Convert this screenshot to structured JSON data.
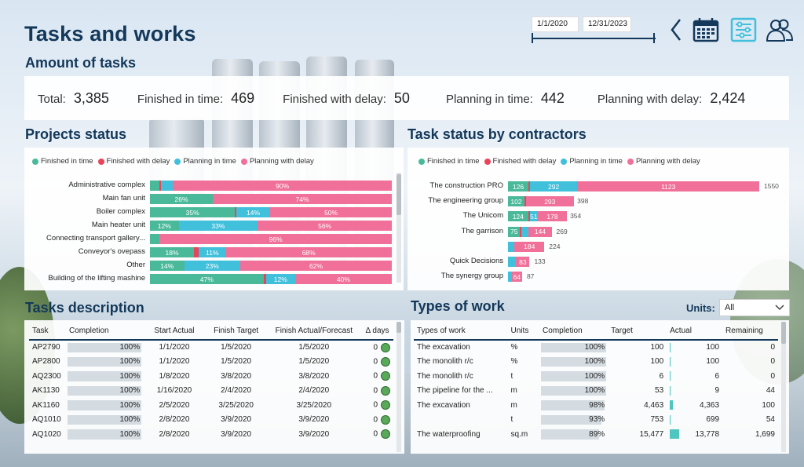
{
  "header": {
    "title": "Tasks and works",
    "date_from": "1/1/2020",
    "date_to": "12/31/2023"
  },
  "nav_icons": [
    "back-chevron-icon",
    "calendar-icon",
    "filter-sliders-icon",
    "users-icon"
  ],
  "colors": {
    "finished_in_time": "#4ab99a",
    "finished_with_delay": "#e8445a",
    "planning_in_time": "#41c0dc",
    "planning_with_delay": "#f07099",
    "title": "#13385a"
  },
  "kpis": {
    "heading": "Amount of tasks",
    "items": [
      {
        "label": "Total:",
        "value": "3,385"
      },
      {
        "label": "Finished in time:",
        "value": "469"
      },
      {
        "label": "Finished with delay:",
        "value": "50"
      },
      {
        "label": "Planning in time:",
        "value": "442"
      },
      {
        "label": "Planning with delay:",
        "value": "2,424"
      }
    ]
  },
  "legend": [
    "Finished in time",
    "Finished with delay",
    "Planning in time",
    "Planning with delay"
  ],
  "projects": {
    "heading": "Projects status",
    "rows": [
      {
        "name": "Administrative complex",
        "vals": [
          0.04,
          0.005,
          0.05,
          0.9
        ],
        "labels": [
          "",
          "",
          "",
          "90%"
        ]
      },
      {
        "name": "Main fan unit",
        "vals": [
          0.26,
          0.0,
          0.0,
          0.74
        ],
        "labels": [
          "26%",
          "",
          "",
          "74%"
        ]
      },
      {
        "name": "Boiler complex",
        "vals": [
          0.35,
          0.005,
          0.14,
          0.5
        ],
        "labels": [
          "35%",
          "",
          "14%",
          "50%"
        ]
      },
      {
        "name": "Main heater unit",
        "vals": [
          0.12,
          0.0,
          0.33,
          0.56
        ],
        "labels": [
          "12%",
          "",
          "33%",
          "56%"
        ]
      },
      {
        "name": "Connecting transport gallery...",
        "vals": [
          0.04,
          0.0,
          0.0,
          0.96
        ],
        "labels": [
          "",
          "",
          "",
          "96%"
        ]
      },
      {
        "name": "Conveyor's ovepass",
        "vals": [
          0.18,
          0.02,
          0.11,
          0.68
        ],
        "labels": [
          "18%",
          "",
          "11%",
          "68%"
        ]
      },
      {
        "name": "Other",
        "vals": [
          0.14,
          0.0,
          0.23,
          0.62
        ],
        "labels": [
          "14%",
          "",
          "23%",
          "62%"
        ]
      },
      {
        "name": "Building of the lifting mashine",
        "vals": [
          0.47,
          0.01,
          0.12,
          0.4
        ],
        "labels": [
          "47%",
          "",
          "12%",
          "40%"
        ]
      }
    ]
  },
  "contractors": {
    "heading": "Task status by contractors",
    "max": 1550,
    "rows": [
      {
        "name": "The construction PRO",
        "vals": [
          126,
          9,
          292,
          1123
        ],
        "labels": [
          "126",
          "",
          "292",
          "1123"
        ],
        "total": "1550"
      },
      {
        "name": "The engineering group",
        "vals": [
          102,
          3,
          0,
          293
        ],
        "labels": [
          "102",
          "",
          "",
          "293"
        ],
        "total": "398"
      },
      {
        "name": "The Unicom",
        "vals": [
          124,
          1,
          51,
          178
        ],
        "labels": [
          "124",
          "",
          "51",
          "178"
        ],
        "total": "354"
      },
      {
        "name": "The garrison",
        "vals": [
          75,
          8,
          42,
          144
        ],
        "labels": [
          "75",
          "",
          "",
          "144"
        ],
        "total": "269"
      },
      {
        "name": "",
        "vals": [
          0,
          0,
          40,
          184
        ],
        "labels": [
          "",
          "",
          "",
          "184"
        ],
        "total": "224"
      },
      {
        "name": "Quick Decisions",
        "vals": [
          0,
          0,
          50,
          83
        ],
        "labels": [
          "",
          "",
          "",
          "83"
        ],
        "total": "133"
      },
      {
        "name": "The synergy group",
        "vals": [
          0,
          0,
          23,
          64
        ],
        "labels": [
          "",
          "",
          "",
          "64"
        ],
        "total": "87"
      }
    ]
  },
  "tasks": {
    "heading": "Tasks description",
    "columns": [
      "Task",
      "Completion",
      "Start Actual",
      "Finish Target",
      "Finish Actual/Forecast",
      "Δ days"
    ],
    "rows": [
      {
        "task": "AP2790",
        "completion": "100%",
        "start": "1/1/2020",
        "target": "1/5/2020",
        "actual": "1/5/2020",
        "delta": "0"
      },
      {
        "task": "AP2800",
        "completion": "100%",
        "start": "1/1/2020",
        "target": "1/5/2020",
        "actual": "1/5/2020",
        "delta": "0"
      },
      {
        "task": "AQ2300",
        "completion": "100%",
        "start": "1/8/2020",
        "target": "3/8/2020",
        "actual": "3/8/2020",
        "delta": "0"
      },
      {
        "task": "AK1130",
        "completion": "100%",
        "start": "1/16/2020",
        "target": "2/4/2020",
        "actual": "2/4/2020",
        "delta": "0"
      },
      {
        "task": "AK1160",
        "completion": "100%",
        "start": "2/5/2020",
        "target": "3/25/2020",
        "actual": "3/25/2020",
        "delta": "0"
      },
      {
        "task": "AQ1010",
        "completion": "100%",
        "start": "2/8/2020",
        "target": "3/9/2020",
        "actual": "3/9/2020",
        "delta": "0"
      },
      {
        "task": "AQ1020",
        "completion": "100%",
        "start": "2/8/2020",
        "target": "3/9/2020",
        "actual": "3/9/2020",
        "delta": "0"
      }
    ]
  },
  "works": {
    "heading": "Types of work",
    "units_label": "Units:",
    "units_value": "All",
    "columns": [
      "Types of work",
      "Units",
      "Completion",
      "Target",
      "Actual",
      "Remaining"
    ],
    "rows": [
      {
        "type": "The excavation",
        "units": "%",
        "completion": "100%",
        "comp": 1.0,
        "target": "100",
        "actual": "100",
        "act": 0.0,
        "remaining": "0"
      },
      {
        "type": "The monolith r/c",
        "units": "%",
        "completion": "100%",
        "comp": 1.0,
        "target": "100",
        "actual": "100",
        "act": 0.0,
        "remaining": "0"
      },
      {
        "type": "The monolith r/c",
        "units": "t",
        "completion": "100%",
        "comp": 1.0,
        "target": "6",
        "actual": "6",
        "act": 0.0,
        "remaining": "0"
      },
      {
        "type": "The pipeline for the ...",
        "units": "m",
        "completion": "100%",
        "comp": 1.0,
        "target": "53",
        "actual": "9",
        "act": 0.0,
        "remaining": "44"
      },
      {
        "type": "The excavation",
        "units": "m",
        "completion": "98%",
        "comp": 0.98,
        "target": "4,463",
        "actual": "4,363",
        "act": 0.32,
        "remaining": "100"
      },
      {
        "type": "",
        "units": "t",
        "completion": "93%",
        "comp": 0.93,
        "target": "753",
        "actual": "699",
        "act": 0.05,
        "remaining": "54"
      },
      {
        "type": "The waterproofing",
        "units": "sq.m",
        "completion": "89%",
        "comp": 0.89,
        "target": "15,477",
        "actual": "13,778",
        "act": 1.0,
        "remaining": "1,699"
      }
    ]
  }
}
